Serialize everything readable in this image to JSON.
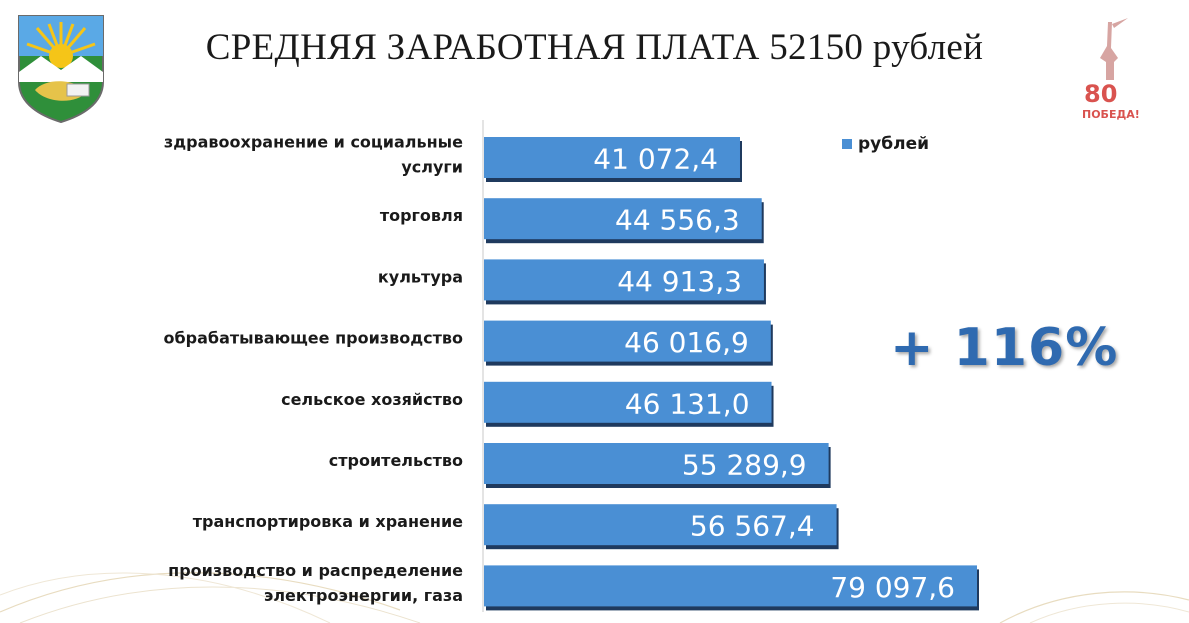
{
  "header": {
    "title": "СРЕДНЯЯ ЗАРАБОТНАЯ ПЛАТА 52150 рублей"
  },
  "logos": {
    "left": "coat-of-arms-emblem",
    "right_text_top": "80",
    "right_text_bottom": "ПОБЕДА!"
  },
  "growth_label": "+ 116%",
  "colors": {
    "bar": "#4a8fd4",
    "bar_shadow": "#1f3a5e",
    "accent": "#2f6ab0",
    "victory_red": "#d9534f"
  },
  "chart_data": {
    "type": "bar",
    "orientation": "horizontal",
    "title": "",
    "categories": [
      [
        "здравоохранение и социальные",
        "услуги"
      ],
      [
        "торговля"
      ],
      [
        "культура"
      ],
      [
        "обрабатывающее производство"
      ],
      [
        "сельское хозяйство"
      ],
      [
        "строительство"
      ],
      [
        "транспортировка и хранение"
      ],
      [
        "производство и распределение",
        "электроэнергии, газа"
      ]
    ],
    "series": [
      {
        "name": "рублей",
        "values": [
          41072.4,
          44556.3,
          44913.3,
          46016.9,
          46131.0,
          55289.9,
          56567.4,
          79097.6
        ],
        "labels": [
          "41 072,4",
          "44 556,3",
          "44 913,3",
          "46 016,9",
          "46 131,0",
          "55 289,9",
          "56 567,4",
          "79 097,6"
        ]
      }
    ],
    "xlim": [
      0,
      79097.6
    ],
    "legend_position": "top-right",
    "grid": false
  }
}
